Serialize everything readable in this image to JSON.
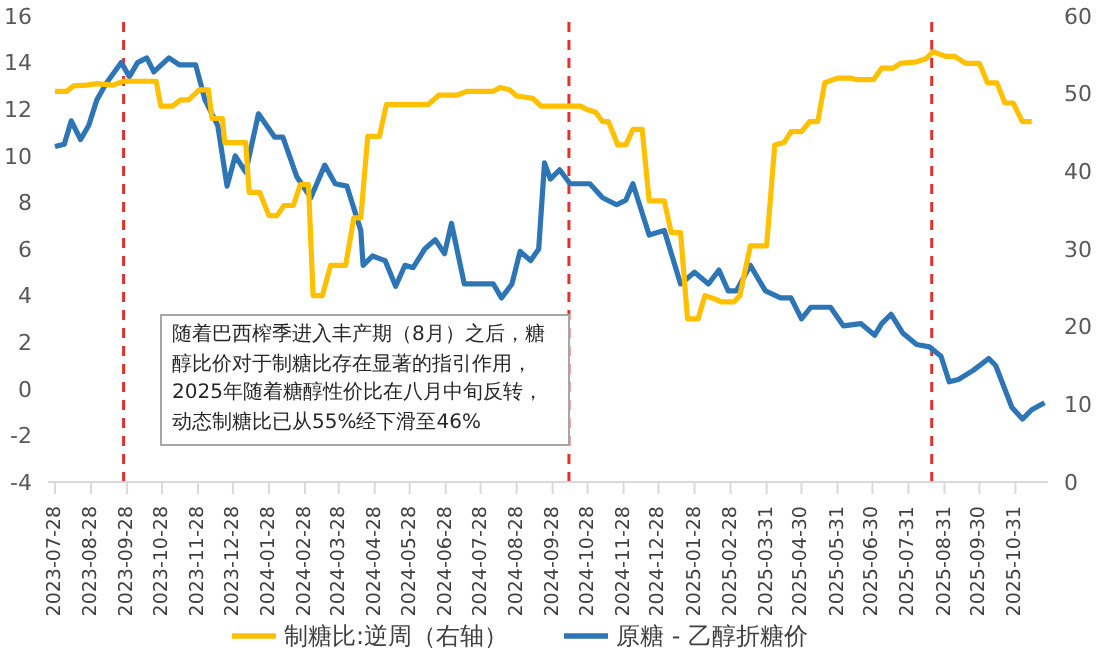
{
  "chart_data": {
    "type": "line",
    "legend": "bottom",
    "grid": false,
    "marker": "none",
    "line_style": "solid",
    "xlim": [
      "2023-07-22",
      "2025-11-28"
    ],
    "xticks": [
      "2023-07-28",
      "2023-08-28",
      "2023-09-28",
      "2023-10-28",
      "2023-11-28",
      "2023-12-28",
      "2024-01-28",
      "2024-02-28",
      "2024-03-28",
      "2024-04-28",
      "2024-05-28",
      "2024-06-28",
      "2024-07-28",
      "2024-08-28",
      "2024-09-28",
      "2024-10-28",
      "2024-11-28",
      "2024-12-28",
      "2025-01-28",
      "2025-02-28",
      "2025-03-31",
      "2025-04-30",
      "2025-05-31",
      "2025-06-30",
      "2025-07-31",
      "2025-08-31",
      "2025-09-30",
      "2025-10-31"
    ],
    "ylim": [
      -4,
      16
    ],
    "yticks": [
      -4,
      -2,
      0,
      2,
      4,
      6,
      8,
      10,
      12,
      14,
      16
    ],
    "y2lim": [
      0,
      60
    ],
    "y2ticks": [
      0,
      10,
      20,
      30,
      40,
      50,
      60
    ],
    "series": [
      {
        "name": "原糖 - 乙醇折糖价",
        "color": "#2e75b6",
        "x": [
          "2023-07-28",
          "2023-08-05",
          "2023-08-11",
          "2023-08-19",
          "2023-08-26",
          "2023-09-02",
          "2023-09-10",
          "2023-09-23",
          "2023-09-30",
          "2023-10-07",
          "2023-10-15",
          "2023-10-21",
          "2023-11-03",
          "2023-11-12",
          "2023-11-26",
          "2023-12-04",
          "2023-12-15",
          "2023-12-23",
          "2023-12-30",
          "2024-01-08",
          "2024-01-19",
          "2024-02-02",
          "2024-02-09",
          "2024-02-21",
          "2024-03-04",
          "2024-03-16",
          "2024-03-25",
          "2024-04-04",
          "2024-04-16",
          "2024-04-18",
          "2024-04-26",
          "2024-05-07",
          "2024-05-16",
          "2024-05-24",
          "2024-05-31",
          "2024-06-10",
          "2024-06-19",
          "2024-06-27",
          "2024-07-03",
          "2024-07-14",
          "2024-07-31",
          "2024-08-08",
          "2024-08-15",
          "2024-08-24",
          "2024-08-31",
          "2024-09-09",
          "2024-09-16",
          "2024-09-21",
          "2024-09-26",
          "2024-10-04",
          "2024-10-13",
          "2024-10-30",
          "2024-11-10",
          "2024-11-22",
          "2024-11-30",
          "2024-12-06",
          "2024-12-20",
          "2025-01-02",
          "2025-01-16",
          "2025-01-28",
          "2025-02-09",
          "2025-02-18",
          "2025-02-26",
          "2025-03-05",
          "2025-03-17",
          "2025-03-30",
          "2025-04-12",
          "2025-04-21",
          "2025-04-30",
          "2025-05-08",
          "2025-05-25",
          "2025-06-05",
          "2025-06-20",
          "2025-07-02",
          "2025-07-08",
          "2025-07-16",
          "2025-07-26",
          "2025-08-07",
          "2025-08-18",
          "2025-08-28",
          "2025-09-04",
          "2025-09-12",
          "2025-09-25",
          "2025-10-08",
          "2025-10-14",
          "2025-10-28",
          "2025-11-06",
          "2025-11-14",
          "2025-11-25"
        ],
        "values": [
          10.4,
          10.5,
          11.5,
          10.7,
          11.3,
          12.4,
          13.1,
          14.0,
          13.4,
          14.0,
          14.2,
          13.6,
          14.2,
          13.9,
          13.9,
          12.4,
          11.3,
          8.7,
          10.0,
          9.3,
          11.8,
          10.8,
          10.8,
          9.1,
          8.2,
          9.6,
          8.8,
          8.7,
          6.8,
          5.3,
          5.7,
          5.5,
          4.4,
          5.3,
          5.2,
          6.0,
          6.4,
          5.8,
          7.1,
          4.5,
          4.5,
          4.5,
          3.9,
          4.5,
          5.9,
          5.5,
          6.0,
          9.7,
          9.0,
          9.4,
          8.8,
          8.8,
          8.2,
          7.9,
          8.1,
          8.8,
          6.6,
          6.8,
          4.5,
          5.0,
          4.5,
          5.1,
          4.2,
          4.2,
          5.3,
          4.2,
          3.9,
          3.9,
          3.0,
          3.5,
          3.5,
          2.7,
          2.8,
          2.3,
          2.8,
          3.2,
          2.4,
          1.9,
          1.8,
          1.4,
          0.3,
          0.4,
          0.8,
          1.3,
          1.0,
          -0.8,
          -1.3,
          -0.9,
          -0.6
        ]
      },
      {
        "name": "制糖比:逆周（右轴）",
        "color": "#ffc000",
        "axis": "y2",
        "x": [
          "2023-07-28",
          "2023-08-07",
          "2023-08-13",
          "2023-08-24",
          "2023-09-02",
          "2023-09-16",
          "2023-09-25",
          "2023-10-23",
          "2023-10-27",
          "2023-11-06",
          "2023-11-13",
          "2023-11-20",
          "2023-11-29",
          "2023-12-07",
          "2023-12-10",
          "2023-12-19",
          "2023-12-21",
          "2024-01-08",
          "2024-01-11",
          "2024-01-20",
          "2024-01-28",
          "2024-02-04",
          "2024-02-10",
          "2024-02-18",
          "2024-02-24",
          "2024-03-02",
          "2024-03-06",
          "2024-03-14",
          "2024-03-21",
          "2024-04-03",
          "2024-04-10",
          "2024-04-16",
          "2024-04-22",
          "2024-05-02",
          "2024-05-08",
          "2024-06-13",
          "2024-06-22",
          "2024-07-08",
          "2024-07-16",
          "2024-08-08",
          "2024-08-14",
          "2024-08-22",
          "2024-08-28",
          "2024-09-11",
          "2024-09-18",
          "2024-10-22",
          "2024-10-27",
          "2024-11-04",
          "2024-11-10",
          "2024-11-15",
          "2024-11-23",
          "2024-11-30",
          "2024-12-06",
          "2024-12-14",
          "2024-12-20",
          "2025-01-02",
          "2025-01-08",
          "2025-01-16",
          "2025-01-22",
          "2025-01-31",
          "2025-02-06",
          "2025-02-14",
          "2025-02-20",
          "2025-03-03",
          "2025-03-08",
          "2025-03-17",
          "2025-03-31",
          "2025-04-07",
          "2025-04-15",
          "2025-04-21",
          "2025-04-30",
          "2025-05-07",
          "2025-05-14",
          "2025-05-20",
          "2025-05-31",
          "2025-06-11",
          "2025-06-17",
          "2025-07-01",
          "2025-07-08",
          "2025-07-18",
          "2025-07-24",
          "2025-08-07",
          "2025-08-15",
          "2025-08-21",
          "2025-09-01",
          "2025-09-09",
          "2025-09-18",
          "2025-09-30",
          "2025-10-07",
          "2025-10-15",
          "2025-10-22",
          "2025-10-29",
          "2025-11-06",
          "2025-11-14"
        ],
        "values": [
          50.3,
          50.3,
          51.0,
          51.1,
          51.3,
          51.1,
          51.6,
          51.6,
          48.4,
          48.4,
          49.2,
          49.2,
          50.5,
          50.5,
          46.8,
          46.8,
          43.7,
          43.7,
          37.3,
          37.3,
          34.3,
          34.3,
          35.6,
          35.6,
          38.3,
          38.3,
          24.0,
          24.0,
          27.9,
          27.9,
          34.0,
          34.0,
          44.5,
          44.5,
          48.6,
          48.6,
          49.8,
          49.8,
          50.3,
          50.3,
          50.8,
          50.5,
          49.7,
          49.4,
          48.4,
          48.4,
          48.0,
          47.6,
          46.4,
          46.4,
          43.4,
          43.4,
          45.4,
          45.4,
          36.2,
          36.2,
          32.1,
          32.1,
          21.0,
          21.0,
          24.0,
          23.6,
          23.2,
          23.2,
          24.0,
          30.4,
          30.4,
          43.4,
          43.7,
          45.1,
          45.1,
          46.4,
          46.4,
          51.4,
          52.0,
          52.0,
          51.8,
          51.8,
          53.3,
          53.3,
          53.9,
          54.1,
          54.5,
          55.4,
          54.8,
          54.8,
          53.9,
          53.9,
          51.4,
          51.4,
          48.8,
          48.8,
          46.4,
          46.4
        ]
      }
    ],
    "ref_lines": [
      {
        "axis": "x",
        "value": "2023-09-25",
        "color": "#e03030",
        "line_style": "dashed"
      },
      {
        "axis": "x",
        "value": "2024-10-12",
        "color": "#e03030",
        "line_style": "dashed"
      },
      {
        "axis": "x",
        "value": "2025-08-20",
        "color": "#e03030",
        "line_style": "dashed"
      }
    ],
    "annotations": [
      "随着巴西榨季进入丰产期（8月）之后，糖醇比价对于制糖比存在显著的指引作用，2025年随着糖醇性价比在八月中旬反转，动态制糖比已从55%经下滑至46%"
    ]
  }
}
